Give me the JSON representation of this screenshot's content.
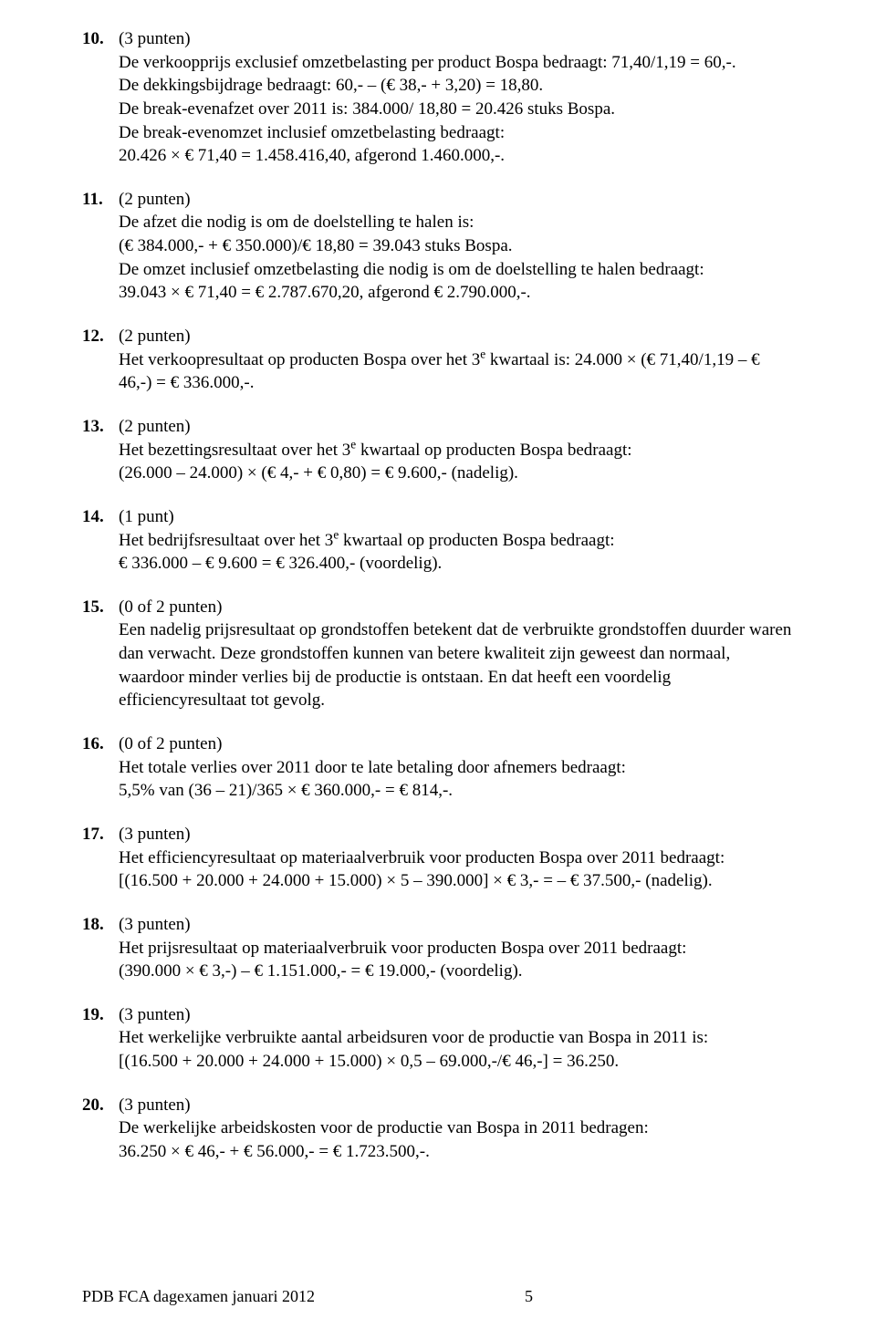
{
  "items": [
    {
      "num": "10.",
      "pts": "(3 punten)",
      "lines": [
        "De verkoopprijs exclusief omzetbelasting per product Bospa bedraagt: 71,40/1,19 = 60,-.",
        "De dekkingsbijdrage bedraagt: 60,- – (€ 38,- + 3,20) = 18,80.",
        "De break-evenafzet over 2011 is: 384.000/ 18,80 = 20.426 stuks Bospa.",
        "De break-evenomzet inclusief omzetbelasting bedraagt:",
        "20.426 × € 71,40 = 1.458.416,40, afgerond 1.460.000,-."
      ]
    },
    {
      "num": "11.",
      "pts": "(2 punten)",
      "lines": [
        "De afzet die nodig is om de doelstelling te halen is:",
        "(€ 384.000,- + € 350.000)/€ 18,80 = 39.043 stuks Bospa.",
        "De omzet inclusief omzetbelasting die nodig is om de doelstelling te halen bedraagt:",
        "39.043 × € 71,40 = € 2.787.670,20, afgerond € 2.790.000,-."
      ]
    },
    {
      "num": "12.",
      "pts": "(2 punten)",
      "lines": [
        "Het verkoopresultaat op producten Bospa over het 3<sup>e</sup> kwartaal is: 24.000 × (€ 71,40/1,19 – € 46,-) = € 336.000,-."
      ]
    },
    {
      "num": "13.",
      "pts": "(2 punten)",
      "lines": [
        "Het bezettingsresultaat over het 3<sup>e</sup> kwartaal op producten Bospa bedraagt:",
        "(26.000 – 24.000) × (€ 4,- + € 0,80) = € 9.600,- (nadelig)."
      ]
    },
    {
      "num": "14.",
      "pts": "(1 punt)",
      "lines": [
        "Het bedrijfsresultaat over het 3<sup>e</sup> kwartaal op producten Bospa bedraagt:",
        "€ 336.000 – € 9.600 = € 326.400,- (voordelig)."
      ]
    },
    {
      "num": "15.",
      "pts": "(0 of 2 punten)",
      "lines": [
        "Een nadelig prijsresultaat op grondstoffen betekent dat de verbruikte grondstoffen duurder waren dan verwacht. Deze grondstoffen kunnen van betere kwaliteit zijn geweest dan normaal, waardoor minder verlies bij de productie is ontstaan. En dat heeft een voordelig efficiencyresultaat tot gevolg."
      ]
    },
    {
      "num": "16.",
      "pts": "(0 of 2 punten)",
      "lines": [
        "Het totale verlies over 2011 door te late betaling door afnemers bedraagt:",
        "5,5% van (36 – 21)/365 × € 360.000,- = € 814,-."
      ]
    },
    {
      "num": "17.",
      "pts": "(3 punten)",
      "lines": [
        "Het efficiencyresultaat op materiaalverbruik voor producten Bospa over 2011 bedraagt:",
        "[(16.500 + 20.000 + 24.000 + 15.000) × 5 – 390.000] × € 3,- = – € 37.500,- (nadelig)."
      ]
    },
    {
      "num": "18.",
      "pts": "(3 punten)",
      "lines": [
        "Het prijsresultaat op materiaalverbruik voor producten Bospa over 2011 bedraagt:",
        "(390.000 × € 3,-) – € 1.151.000,- = € 19.000,- (voordelig)."
      ]
    },
    {
      "num": "19.",
      "pts": "(3 punten)",
      "lines": [
        "Het werkelijke verbruikte aantal arbeidsuren voor de productie van Bospa in 2011 is:",
        "[(16.500 + 20.000 + 24.000 + 15.000) × 0,5 – 69.000,-/€ 46,-] = 36.250."
      ]
    },
    {
      "num": "20.",
      "pts": "(3 punten)",
      "lines": [
        "De werkelijke arbeidskosten voor de productie van Bospa in 2011 bedragen:",
        "36.250 × € 46,- + € 56.000,- = € 1.723.500,-."
      ]
    }
  ],
  "footer": {
    "text": "PDB FCA dagexamen januari 2012",
    "page": "5"
  }
}
